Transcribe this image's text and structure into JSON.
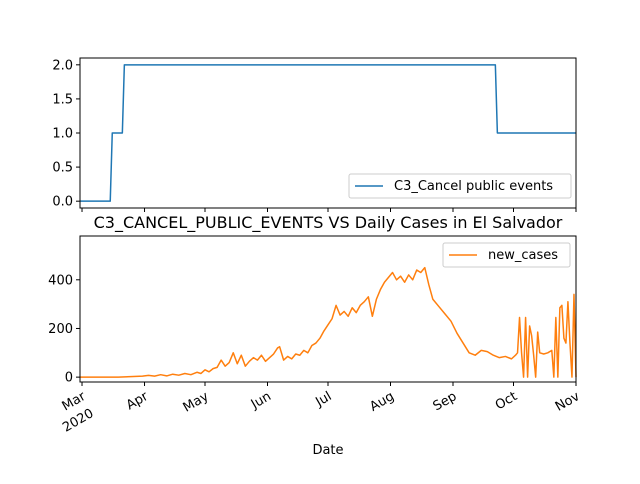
{
  "chart_data": [
    {
      "type": "line",
      "title": "",
      "xlabel": "",
      "ylabel": "",
      "x_range": [
        "2020-02-29",
        "2020-11-01"
      ],
      "ylim": [
        -0.1,
        2.1
      ],
      "yticks": [
        "0.0",
        "0.5",
        "1.0",
        "1.5",
        "2.0"
      ],
      "legend_position": "lower-right",
      "grid": false,
      "series": [
        {
          "name": "C3_Cancel public events",
          "color": "#1f77b4",
          "points": [
            [
              "2020-02-29",
              0
            ],
            [
              "2020-03-15",
              0
            ],
            [
              "2020-03-16",
              1
            ],
            [
              "2020-03-21",
              1
            ],
            [
              "2020-03-22",
              2
            ],
            [
              "2020-09-22",
              2
            ],
            [
              "2020-09-23",
              1
            ],
            [
              "2020-11-01",
              1
            ]
          ]
        }
      ]
    },
    {
      "type": "line",
      "title": "C3_CANCEL_PUBLIC_EVENTS VS Daily Cases in El Salvador",
      "xlabel": "Date",
      "ylabel": "",
      "x_range": [
        "2020-02-29",
        "2020-11-01"
      ],
      "ylim": [
        -20,
        580
      ],
      "yticks": [
        "0",
        "200",
        "400"
      ],
      "xticks": [
        {
          "date": "2020-03-01",
          "label": "Mar",
          "sublabel": "2020"
        },
        {
          "date": "2020-04-01",
          "label": "Apr",
          "sublabel": ""
        },
        {
          "date": "2020-05-01",
          "label": "May",
          "sublabel": ""
        },
        {
          "date": "2020-06-01",
          "label": "Jun",
          "sublabel": ""
        },
        {
          "date": "2020-07-01",
          "label": "Jul",
          "sublabel": ""
        },
        {
          "date": "2020-08-01",
          "label": "Aug",
          "sublabel": ""
        },
        {
          "date": "2020-09-01",
          "label": "Sep",
          "sublabel": ""
        },
        {
          "date": "2020-10-01",
          "label": "Oct",
          "sublabel": ""
        },
        {
          "date": "2020-11-01",
          "label": "Nov",
          "sublabel": ""
        }
      ],
      "legend_position": "top-right",
      "grid": false,
      "series": [
        {
          "name": "new_cases",
          "color": "#ff7f0e",
          "points": [
            [
              "2020-02-29",
              0
            ],
            [
              "2020-03-19",
              0
            ],
            [
              "2020-03-25",
              2
            ],
            [
              "2020-03-31",
              4
            ],
            [
              "2020-04-03",
              7
            ],
            [
              "2020-04-06",
              4
            ],
            [
              "2020-04-09",
              10
            ],
            [
              "2020-04-12",
              5
            ],
            [
              "2020-04-15",
              12
            ],
            [
              "2020-04-18",
              8
            ],
            [
              "2020-04-21",
              15
            ],
            [
              "2020-04-24",
              10
            ],
            [
              "2020-04-27",
              20
            ],
            [
              "2020-04-29",
              15
            ],
            [
              "2020-05-01",
              30
            ],
            [
              "2020-05-03",
              22
            ],
            [
              "2020-05-05",
              35
            ],
            [
              "2020-05-07",
              40
            ],
            [
              "2020-05-09",
              70
            ],
            [
              "2020-05-11",
              45
            ],
            [
              "2020-05-13",
              60
            ],
            [
              "2020-05-15",
              100
            ],
            [
              "2020-05-17",
              55
            ],
            [
              "2020-05-19",
              90
            ],
            [
              "2020-05-21",
              45
            ],
            [
              "2020-05-23",
              65
            ],
            [
              "2020-05-25",
              80
            ],
            [
              "2020-05-27",
              70
            ],
            [
              "2020-05-29",
              90
            ],
            [
              "2020-05-31",
              65
            ],
            [
              "2020-06-02",
              80
            ],
            [
              "2020-06-04",
              95
            ],
            [
              "2020-06-06",
              120
            ],
            [
              "2020-06-07",
              125
            ],
            [
              "2020-06-09",
              70
            ],
            [
              "2020-06-11",
              85
            ],
            [
              "2020-06-13",
              75
            ],
            [
              "2020-06-15",
              95
            ],
            [
              "2020-06-17",
              90
            ],
            [
              "2020-06-19",
              110
            ],
            [
              "2020-06-21",
              100
            ],
            [
              "2020-06-23",
              130
            ],
            [
              "2020-06-25",
              140
            ],
            [
              "2020-06-27",
              160
            ],
            [
              "2020-06-29",
              190
            ],
            [
              "2020-07-01",
              215
            ],
            [
              "2020-07-03",
              240
            ],
            [
              "2020-07-05",
              295
            ],
            [
              "2020-07-07",
              255
            ],
            [
              "2020-07-09",
              270
            ],
            [
              "2020-07-11",
              250
            ],
            [
              "2020-07-13",
              285
            ],
            [
              "2020-07-15",
              265
            ],
            [
              "2020-07-17",
              295
            ],
            [
              "2020-07-19",
              310
            ],
            [
              "2020-07-21",
              330
            ],
            [
              "2020-07-23",
              250
            ],
            [
              "2020-07-25",
              320
            ],
            [
              "2020-07-27",
              360
            ],
            [
              "2020-07-29",
              390
            ],
            [
              "2020-07-31",
              410
            ],
            [
              "2020-08-02",
              430
            ],
            [
              "2020-08-04",
              400
            ],
            [
              "2020-08-06",
              415
            ],
            [
              "2020-08-08",
              390
            ],
            [
              "2020-08-10",
              420
            ],
            [
              "2020-08-12",
              400
            ],
            [
              "2020-08-14",
              440
            ],
            [
              "2020-08-16",
              430
            ],
            [
              "2020-08-18",
              450
            ],
            [
              "2020-08-20",
              380
            ],
            [
              "2020-08-22",
              320
            ],
            [
              "2020-08-25",
              290
            ],
            [
              "2020-08-28",
              260
            ],
            [
              "2020-08-31",
              230
            ],
            [
              "2020-09-03",
              180
            ],
            [
              "2020-09-06",
              140
            ],
            [
              "2020-09-09",
              100
            ],
            [
              "2020-09-12",
              90
            ],
            [
              "2020-09-15",
              110
            ],
            [
              "2020-09-18",
              105
            ],
            [
              "2020-09-21",
              90
            ],
            [
              "2020-09-24",
              80
            ],
            [
              "2020-09-27",
              85
            ],
            [
              "2020-09-30",
              75
            ],
            [
              "2020-10-02",
              90
            ],
            [
              "2020-10-03",
              100
            ],
            [
              "2020-10-04",
              245
            ],
            [
              "2020-10-05",
              100
            ],
            [
              "2020-10-06",
              0
            ],
            [
              "2020-10-07",
              245
            ],
            [
              "2020-10-08",
              0
            ],
            [
              "2020-10-09",
              210
            ],
            [
              "2020-10-10",
              170
            ],
            [
              "2020-10-11",
              90
            ],
            [
              "2020-10-12",
              0
            ],
            [
              "2020-10-13",
              185
            ],
            [
              "2020-10-14",
              100
            ],
            [
              "2020-10-16",
              95
            ],
            [
              "2020-10-18",
              100
            ],
            [
              "2020-10-20",
              110
            ],
            [
              "2020-10-21",
              0
            ],
            [
              "2020-10-22",
              245
            ],
            [
              "2020-10-23",
              0
            ],
            [
              "2020-10-24",
              285
            ],
            [
              "2020-10-25",
              295
            ],
            [
              "2020-10-26",
              160
            ],
            [
              "2020-10-27",
              140
            ],
            [
              "2020-10-28",
              310
            ],
            [
              "2020-10-29",
              140
            ],
            [
              "2020-10-30",
              0
            ],
            [
              "2020-10-31",
              340
            ],
            [
              "2020-11-01",
              0
            ]
          ]
        }
      ]
    }
  ]
}
